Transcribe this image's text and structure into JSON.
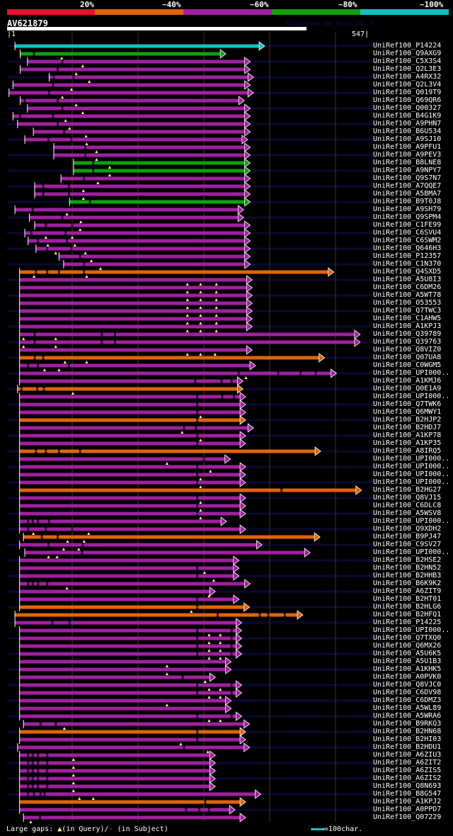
{
  "legend": {
    "labels": [
      "20%",
      "~40%",
      "~60%",
      "~80%",
      "~100%"
    ],
    "colors": [
      "#e8102a",
      "#e0640a",
      "#a020a0",
      "#10a010",
      "#10c0c0"
    ]
  },
  "query": {
    "name": "AV621879",
    "watermark": "AlignView.pm Beta rel.7",
    "start_label": "1",
    "end_label": "547",
    "length": 547
  },
  "colors": {
    "background": "#000000",
    "row_stripe": "#0a0a30",
    "gridline": "#3a3a10",
    "query_gap_marker": "#ffff80",
    "start_tick": "#ffffff"
  },
  "grid_interval_chars": 100,
  "rows": [
    {
      "label": "UniRef100_P14224",
      "color": "cyan",
      "start": 13,
      "end": 385,
      "gaps": [],
      "qmarks": []
    },
    {
      "label": "UniRef100_Q9AXG9",
      "color": "green",
      "start": 21,
      "end": 326,
      "gaps": [
        42
      ],
      "qmarks": [
        84
      ]
    },
    {
      "label": "UniRef100_C5X3S4",
      "color": "purple",
      "start": 32,
      "end": 363,
      "gaps": [
        85
      ],
      "qmarks": [
        116
      ]
    },
    {
      "label": "UniRef100_Q2L3E3",
      "color": "purple",
      "start": 21,
      "end": 363,
      "gaps": [
        78
      ],
      "qmarks": [
        106
      ]
    },
    {
      "label": "UniRef100_A4RX32",
      "color": "purple",
      "start": 65,
      "end": 368,
      "gaps": [
        72,
        102
      ],
      "qmarks": [
        126
      ]
    },
    {
      "label": "UniRef100_Q2L3V4",
      "color": "purple",
      "start": 10,
      "end": 363,
      "gaps": [
        71
      ],
      "qmarks": [
        99
      ]
    },
    {
      "label": "UniRef100_Q019T9",
      "color": "purple",
      "start": 4,
      "end": 368,
      "gaps": [
        65
      ],
      "qmarks": [
        85
      ]
    },
    {
      "label": "UniRef100_Q69QR6",
      "color": "purple",
      "start": 21,
      "end": 354,
      "gaps": [
        28,
        78
      ],
      "qmarks": [
        106
      ]
    },
    {
      "label": "UniRef100_Q00327",
      "color": "purple",
      "start": 32,
      "end": 363,
      "gaps": [
        85
      ],
      "qmarks": [
        116
      ]
    },
    {
      "label": "UniRef100_B4G1K9",
      "color": "purple",
      "start": 10,
      "end": 363,
      "gaps": [
        21,
        71
      ],
      "qmarks": [
        90
      ]
    },
    {
      "label": "UniRef100_A9PHN7",
      "color": "purple",
      "start": 17,
      "end": 363,
      "gaps": [
        78
      ],
      "qmarks": [
        96
      ]
    },
    {
      "label": "UniRef100_B6U534",
      "color": "purple",
      "start": 41,
      "end": 363,
      "gaps": [
        88
      ],
      "qmarks": [
        121
      ]
    },
    {
      "label": "UniRef100_A9SJ10",
      "color": "purple",
      "start": 28,
      "end": 359,
      "gaps": [
        64,
        99
      ],
      "qmarks": [
        122
      ]
    },
    {
      "label": "UniRef100_A9PFU1",
      "color": "purple",
      "start": 72,
      "end": 363,
      "gaps": [
        120
      ],
      "qmarks": [
        137
      ]
    },
    {
      "label": "UniRef100_A9PEV3",
      "color": "purple",
      "start": 72,
      "end": 363,
      "gaps": [
        120
      ],
      "qmarks": [
        137
      ]
    },
    {
      "label": "UniRef100_B8LNE8",
      "color": "green",
      "start": 102,
      "end": 363,
      "gaps": [
        132
      ],
      "qmarks": [
        157
      ]
    },
    {
      "label": "UniRef100_A9NPY7",
      "color": "green",
      "start": 102,
      "end": 363,
      "gaps": [
        132
      ],
      "qmarks": [
        157
      ]
    },
    {
      "label": "UniRef100_Q9S7N7",
      "color": "purple",
      "start": 83,
      "end": 363,
      "gaps": [
        118
      ],
      "qmarks": [
        139
      ]
    },
    {
      "label": "UniRef100_A7QQE7",
      "color": "purple",
      "start": 43,
      "end": 363,
      "gaps": [
        56,
        95
      ],
      "qmarks": [
        117
      ]
    },
    {
      "label": "UniRef100_A5BMA7",
      "color": "purple",
      "start": 43,
      "end": 363,
      "gaps": [
        56,
        95
      ],
      "qmarks": [
        117
      ]
    },
    {
      "label": "UniRef100_B9T0J8",
      "color": "green",
      "start": 96,
      "end": 363,
      "gaps": [
        127
      ],
      "qmarks": []
    },
    {
      "label": "UniRef100_A9SH79",
      "color": "purple",
      "start": 13,
      "end": 353,
      "gaps": [
        40
      ],
      "qmarks": [
        92
      ]
    },
    {
      "label": "UniRef100_Q9SPM4",
      "color": "purple",
      "start": 35,
      "end": 353,
      "gaps": [
        85
      ],
      "qmarks": [
        113
      ]
    },
    {
      "label": "UniRef100_C1FE99",
      "color": "purple",
      "start": 43,
      "end": 363,
      "gaps": [
        60,
        100
      ],
      "qmarks": [
        112
      ]
    },
    {
      "label": "UniRef100_C6SVU4",
      "color": "purple",
      "start": 28,
      "end": 363,
      "gaps": [
        38,
        90
      ],
      "qmarks": [
        60,
        100
      ]
    },
    {
      "label": "UniRef100_C6SWM2",
      "color": "purple",
      "start": 33,
      "end": 363,
      "gaps": [
        48,
        92
      ],
      "qmarks": [
        63,
        104
      ]
    },
    {
      "label": "UniRef100_Q646H3",
      "color": "purple",
      "start": 45,
      "end": 363,
      "gaps": [
        62,
        99
      ],
      "qmarks": [
        75,
        120
      ]
    },
    {
      "label": "UniRef100_P12357",
      "color": "purple",
      "start": 80,
      "end": 363,
      "gaps": [
        112
      ],
      "qmarks": [
        129
      ]
    },
    {
      "label": "UniRef100_C1N370",
      "color": "purple",
      "start": 87,
      "end": 363,
      "gaps": [
        118
      ],
      "qmarks": [
        143
      ]
    },
    {
      "label": "UniRef100_Q4SXD5",
      "color": "orange",
      "start": 20,
      "end": 490,
      "gaps": [
        45,
        62,
        80,
        118
      ],
      "qmarks": [
        42,
        122
      ]
    },
    {
      "label": "UniRef100_A5U8I3",
      "color": "purple",
      "start": 20,
      "end": 366,
      "gaps": [],
      "qmarks": [
        275,
        295,
        319
      ]
    },
    {
      "label": "UniRef100_C6DM26",
      "color": "purple",
      "start": 20,
      "end": 366,
      "gaps": [],
      "qmarks": [
        275,
        295,
        319
      ]
    },
    {
      "label": "UniRef100_A5WT78",
      "color": "purple",
      "start": 20,
      "end": 366,
      "gaps": [],
      "qmarks": [
        275,
        295,
        319
      ]
    },
    {
      "label": "UniRef100_O53553",
      "color": "purple",
      "start": 20,
      "end": 366,
      "gaps": [],
      "qmarks": [
        275,
        295,
        319
      ]
    },
    {
      "label": "UniRef100_Q7TWC3",
      "color": "purple",
      "start": 20,
      "end": 366,
      "gaps": [],
      "qmarks": [
        275,
        295,
        319
      ]
    },
    {
      "label": "UniRef100_C1AHW5",
      "color": "purple",
      "start": 20,
      "end": 366,
      "gaps": [],
      "qmarks": [
        275,
        295,
        319
      ]
    },
    {
      "label": "UniRef100_A1KPJ3",
      "color": "purple",
      "start": 20,
      "end": 366,
      "gaps": [],
      "qmarks": [
        275,
        295,
        319
      ]
    },
    {
      "label": "UniRef100_Q39789",
      "color": "purple",
      "start": 20,
      "end": 530,
      "gaps": [
        43,
        145,
        165
      ],
      "qmarks": [
        26,
        75
      ]
    },
    {
      "label": "UniRef100_Q39763",
      "color": "purple",
      "start": 20,
      "end": 530,
      "gaps": [
        43,
        145,
        165
      ],
      "qmarks": [
        26,
        75
      ]
    },
    {
      "label": "UniRef100_Q8VIZ0",
      "color": "purple",
      "start": 20,
      "end": 366,
      "gaps": [],
      "qmarks": [
        275,
        295,
        317
      ]
    },
    {
      "label": "UniRef100_Q07UA8",
      "color": "orange",
      "start": 20,
      "end": 476,
      "gaps": [
        43,
        56
      ],
      "qmarks": [
        89,
        122
      ]
    },
    {
      "label": "UniRef100_C0WGM5",
      "color": "purple",
      "start": 20,
      "end": 371,
      "gaps": [
        33,
        48,
        95
      ],
      "qmarks": [
        58,
        80
      ]
    },
    {
      "label": "UniRef100_UPI000..",
      "color": "purple",
      "start": 20,
      "end": 494,
      "gaps": [
        353,
        413,
        447,
        470
      ],
      "qmarks": [
        364
      ]
    },
    {
      "label": "UniRef100_A1KMJ6",
      "color": "purple",
      "start": 20,
      "end": 352,
      "gaps": [
        287,
        327,
        342
      ],
      "qmarks": []
    },
    {
      "label": "UniRef100_Q0E1A9",
      "color": "orange",
      "start": 17,
      "end": 352,
      "gaps": [
        23,
        47,
        57
      ],
      "qmarks": [
        101
      ]
    },
    {
      "label": "UniRef100_UPI000..",
      "color": "purple",
      "start": 20,
      "end": 356,
      "gaps": [
        290,
        328,
        346
      ],
      "qmarks": []
    },
    {
      "label": "UniRef100_Q7TWK6",
      "color": "purple",
      "start": 20,
      "end": 356,
      "gaps": [
        290
      ],
      "qmarks": []
    },
    {
      "label": "UniRef100_Q6MWY1",
      "color": "purple",
      "start": 20,
      "end": 356,
      "gaps": [
        290
      ],
      "qmarks": [
        295
      ]
    },
    {
      "label": "UniRef100_B2HJP2",
      "color": "orange",
      "start": 20,
      "end": 356,
      "gaps": [
        290
      ],
      "qmarks": []
    },
    {
      "label": "UniRef100_B2HDJ7",
      "color": "purple",
      "start": 20,
      "end": 368,
      "gaps": [
        270,
        288
      ],
      "qmarks": [
        267
      ]
    },
    {
      "label": "UniRef100_A1KP78",
      "color": "purple",
      "start": 20,
      "end": 356,
      "gaps": [
        290
      ],
      "qmarks": [
        295
      ]
    },
    {
      "label": "UniRef100_A1KP35",
      "color": "purple",
      "start": 20,
      "end": 356,
      "gaps": [
        290
      ],
      "qmarks": []
    },
    {
      "label": "UniRef100_A8IRQ5",
      "color": "orange",
      "start": 20,
      "end": 470,
      "gaps": [
        45,
        60,
        80,
        112
      ],
      "qmarks": []
    },
    {
      "label": "UniRef100_UPI000..",
      "color": "purple",
      "start": 20,
      "end": 333,
      "gaps": [
        300
      ],
      "qmarks": [
        244
      ]
    },
    {
      "label": "UniRef100_UPI000..",
      "color": "purple",
      "start": 20,
      "end": 356,
      "gaps": [
        290
      ],
      "qmarks": [
        310
      ]
    },
    {
      "label": "UniRef100_UPI000..",
      "color": "purple",
      "start": 20,
      "end": 356,
      "gaps": [
        290
      ],
      "qmarks": [
        295
      ]
    },
    {
      "label": "UniRef100_UPI000..",
      "color": "purple",
      "start": 20,
      "end": 356,
      "gaps": [
        290
      ],
      "qmarks": [
        295
      ]
    },
    {
      "label": "UniRef100_B2HG27",
      "color": "orange",
      "start": 20,
      "end": 532,
      "gaps": [
        418
      ],
      "qmarks": []
    },
    {
      "label": "UniRef100_Q8VJ15",
      "color": "purple",
      "start": 20,
      "end": 356,
      "gaps": [
        290
      ],
      "qmarks": [
        295
      ]
    },
    {
      "label": "UniRef100_C6DLC8",
      "color": "purple",
      "start": 20,
      "end": 356,
      "gaps": [
        290
      ],
      "qmarks": [
        295
      ]
    },
    {
      "label": "UniRef100_A5WSV8",
      "color": "purple",
      "start": 20,
      "end": 356,
      "gaps": [
        290
      ],
      "qmarks": [
        295
      ]
    },
    {
      "label": "UniRef100_UPI000..",
      "color": "purple",
      "start": 20,
      "end": 327,
      "gaps": [
        33,
        40,
        48,
        65
      ],
      "qmarks": []
    },
    {
      "label": "UniRef100_Q9XDH2",
      "color": "purple",
      "start": 20,
      "end": 356,
      "gaps": [
        33,
        60,
        100
      ],
      "qmarks": [
        41,
        125
      ]
    },
    {
      "label": "UniRef100_B9PJ47",
      "color": "orange",
      "start": 26,
      "end": 469,
      "gaps": [
        54,
        78
      ],
      "qmarks": [
        93,
        118
      ]
    },
    {
      "label": "UniRef100_C9SV27",
      "color": "purple",
      "start": 20,
      "end": 381,
      "gaps": [
        64,
        116
      ],
      "qmarks": [
        87,
        110
      ]
    },
    {
      "label": "UniRef100_UPI000..",
      "color": "purple",
      "start": 28,
      "end": 454,
      "gaps": [
        115
      ],
      "qmarks": [
        64,
        77
      ]
    },
    {
      "label": "UniRef100_B2HSE2",
      "color": "purple",
      "start": 20,
      "end": 346,
      "gaps": [],
      "qmarks": []
    },
    {
      "label": "UniRef100_B2HN52",
      "color": "purple",
      "start": 20,
      "end": 346,
      "gaps": [
        290
      ],
      "qmarks": [
        301
      ]
    },
    {
      "label": "UniRef100_B2HHB3",
      "color": "purple",
      "start": 20,
      "end": 346,
      "gaps": [
        290
      ],
      "qmarks": [
        315
      ]
    },
    {
      "label": "UniRef100_B6K9K2",
      "color": "purple",
      "start": 20,
      "end": 363,
      "gaps": [
        33,
        40,
        48,
        62
      ],
      "qmarks": [
        92
      ]
    },
    {
      "label": "UniRef100_A6ZIT9",
      "color": "purple",
      "start": 20,
      "end": 310,
      "gaps": [],
      "qmarks": [
        308
      ]
    },
    {
      "label": "UniRef100_B2HT01",
      "color": "purple",
      "start": 20,
      "end": 346,
      "gaps": [
        290
      ],
      "qmarks": []
    },
    {
      "label": "UniRef100_B2HLG6",
      "color": "orange",
      "start": 20,
      "end": 362,
      "gaps": [
        290
      ],
      "qmarks": [
        281
      ]
    },
    {
      "label": "UniRef100_B2HFQ1",
      "color": "orange",
      "start": 13,
      "end": 443,
      "gaps": [
        321,
        385,
        398,
        423
      ],
      "qmarks": []
    },
    {
      "label": "UniRef100_P14225",
      "color": "purple",
      "start": 13,
      "end": 350,
      "gaps": [
        70,
        96
      ],
      "qmarks": []
    },
    {
      "label": "UniRef100_UPI000..",
      "color": "purple",
      "start": 20,
      "end": 350,
      "gaps": [
        290,
        342
      ],
      "qmarks": [
        308,
        325
      ]
    },
    {
      "label": "UniRef100_Q7TXQ0",
      "color": "purple",
      "start": 20,
      "end": 350,
      "gaps": [
        290,
        342
      ],
      "qmarks": [
        308,
        325
      ]
    },
    {
      "label": "UniRef100_Q6MX26",
      "color": "purple",
      "start": 20,
      "end": 350,
      "gaps": [
        290,
        342
      ],
      "qmarks": [
        308,
        325
      ]
    },
    {
      "label": "UniRef100_A5U6K5",
      "color": "purple",
      "start": 20,
      "end": 350,
      "gaps": [
        290,
        342
      ],
      "qmarks": [
        308,
        325
      ]
    },
    {
      "label": "UniRef100_A5U1B3",
      "color": "purple",
      "start": 20,
      "end": 334,
      "gaps": [],
      "qmarks": [
        244
      ]
    },
    {
      "label": "UniRef100_A1KHK5",
      "color": "purple",
      "start": 20,
      "end": 334,
      "gaps": [],
      "qmarks": [
        244
      ]
    },
    {
      "label": "UniRef100_A0PVK0",
      "color": "purple",
      "start": 20,
      "end": 310,
      "gaps": [
        268
      ],
      "qmarks": [
        302
      ]
    },
    {
      "label": "UniRef100_Q8VJC0",
      "color": "purple",
      "start": 20,
      "end": 350,
      "gaps": [
        290,
        342
      ],
      "qmarks": [
        308,
        325
      ]
    },
    {
      "label": "UniRef100_C6DV98",
      "color": "purple",
      "start": 20,
      "end": 350,
      "gaps": [
        290,
        342
      ],
      "qmarks": [
        308,
        325
      ]
    },
    {
      "label": "UniRef100_C6DMZ3",
      "color": "purple",
      "start": 20,
      "end": 334,
      "gaps": [],
      "qmarks": [
        244
      ]
    },
    {
      "label": "UniRef100_A5WL89",
      "color": "purple",
      "start": 20,
      "end": 334,
      "gaps": [],
      "qmarks": []
    },
    {
      "label": "UniRef100_A5WRA6",
      "color": "purple",
      "start": 20,
      "end": 350,
      "gaps": [
        290,
        342
      ],
      "qmarks": [
        308,
        325
      ]
    },
    {
      "label": "UniRef100_B9RKQ3",
      "color": "purple",
      "start": 26,
      "end": 362,
      "gaps": [
        52,
        75
      ],
      "qmarks": [
        88
      ]
    },
    {
      "label": "UniRef100_B2HN68",
      "color": "orange",
      "start": 20,
      "end": 356,
      "gaps": [
        290
      ],
      "qmarks": []
    },
    {
      "label": "UniRef100_B2HI03",
      "color": "purple",
      "start": 20,
      "end": 356,
      "gaps": [
        290
      ],
      "qmarks": [
        265
      ]
    },
    {
      "label": "UniRef100_B2HDU1",
      "color": "purple",
      "start": 17,
      "end": 362,
      "gaps": [
        270
      ],
      "qmarks": [
        306
      ]
    },
    {
      "label": "UniRef100_A6ZIU3",
      "color": "purple",
      "start": 20,
      "end": 310,
      "gaps": [
        33,
        40,
        48,
        62
      ],
      "qmarks": [
        102
      ]
    },
    {
      "label": "UniRef100_A6ZIT2",
      "color": "purple",
      "start": 20,
      "end": 310,
      "gaps": [
        33,
        40,
        48,
        62
      ],
      "qmarks": [
        102
      ]
    },
    {
      "label": "UniRef100_A6ZIS5",
      "color": "purple",
      "start": 20,
      "end": 310,
      "gaps": [
        33,
        40,
        48,
        62
      ],
      "qmarks": [
        102
      ]
    },
    {
      "label": "UniRef100_A6ZIS2",
      "color": "purple",
      "start": 20,
      "end": 310,
      "gaps": [
        33,
        40,
        48,
        62
      ],
      "qmarks": [
        102
      ]
    },
    {
      "label": "UniRef100_Q8N693",
      "color": "purple",
      "start": 20,
      "end": 310,
      "gaps": [
        33,
        40,
        48,
        62
      ],
      "qmarks": [
        102
      ]
    },
    {
      "label": "UniRef100_B8G547",
      "color": "purple",
      "start": 20,
      "end": 379,
      "gaps": [
        33,
        42,
        52,
        58
      ],
      "qmarks": [
        111,
        132
      ]
    },
    {
      "label": "UniRef100_A1KPJ2",
      "color": "orange",
      "start": 20,
      "end": 356,
      "gaps": [
        302
      ],
      "qmarks": []
    },
    {
      "label": "UniRef100_A0PPD7",
      "color": "purple",
      "start": 20,
      "end": 340,
      "gaps": [
        273,
        293,
        308
      ],
      "qmarks": []
    },
    {
      "label": "UniRef100_Q07229",
      "color": "purple",
      "start": 26,
      "end": 356,
      "gaps": [
        51
      ],
      "qmarks": [
        37
      ]
    }
  ],
  "footer": {
    "gaps_label": "Large gaps:",
    "query_marker_label": "(in Query)/",
    "subject_marker_label": "(in Subject)",
    "scale_label": "=100char."
  }
}
